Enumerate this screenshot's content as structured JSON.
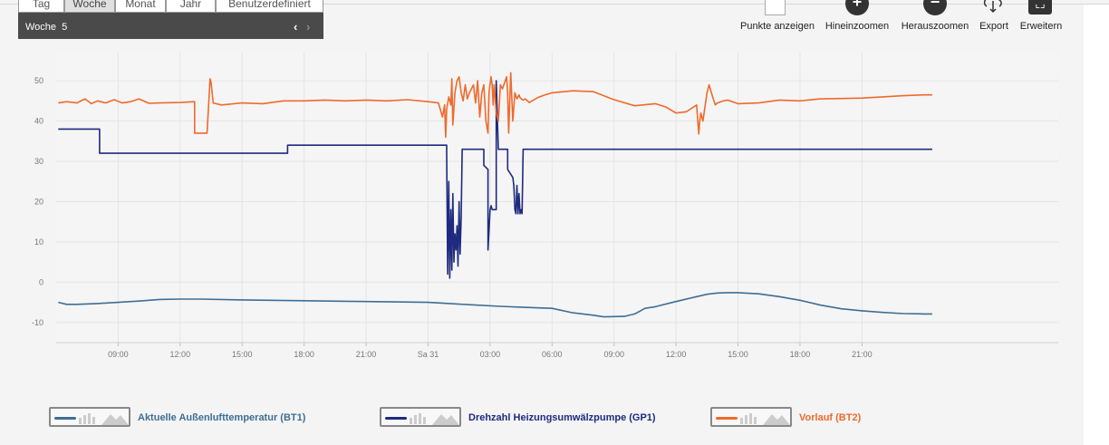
{
  "period_tabs": [
    "Tag",
    "Woche",
    "Monat",
    "Jahr",
    "Benutzerdefiniert"
  ],
  "active_tab": "Woche",
  "week": {
    "label": "Woche",
    "number": "5"
  },
  "toolbar": {
    "show_points": "Punkte anzeigen",
    "zoom_in": "Hineinzoomen",
    "zoom_out": "Herauszoomen",
    "export": "Export",
    "expand": "Erweitern"
  },
  "colors": {
    "outdoor": "#3e6e94",
    "pump": "#1e2b7e",
    "flow": "#ef6a2c",
    "grid": "#e4e4e4",
    "axis_text": "#777777"
  },
  "chart_data": {
    "type": "line",
    "title": "",
    "xlabel": "",
    "ylabel": "",
    "x_unit": "hours",
    "xlim": [
      6,
      54.5
    ],
    "ylim": [
      -15,
      57
    ],
    "y_ticks": [
      -10,
      0,
      10,
      20,
      30,
      40,
      50
    ],
    "x_ticks": [
      {
        "hour": 9,
        "label": "09:00"
      },
      {
        "hour": 12,
        "label": "12:00"
      },
      {
        "hour": 15,
        "label": "15:00"
      },
      {
        "hour": 18,
        "label": "18:00"
      },
      {
        "hour": 21,
        "label": "21:00"
      },
      {
        "hour": 24,
        "label": "Sa 31"
      },
      {
        "hour": 27,
        "label": "03:00"
      },
      {
        "hour": 30,
        "label": "06:00"
      },
      {
        "hour": 33,
        "label": "09:00"
      },
      {
        "hour": 36,
        "label": "12:00"
      },
      {
        "hour": 39,
        "label": "15:00"
      },
      {
        "hour": 42,
        "label": "18:00"
      },
      {
        "hour": 45,
        "label": "21:00"
      }
    ],
    "grid": true,
    "legend_position": "bottom",
    "series": [
      {
        "name": "Aktuelle Außenlufttemperatur (BT1)",
        "key": "outdoor",
        "x": [
          6.1,
          6.5,
          7,
          8,
          9,
          10,
          11,
          12,
          13,
          15,
          18,
          21,
          24,
          26,
          27.5,
          28.5,
          29.5,
          30,
          31,
          32,
          32.5,
          33.5,
          34,
          34.5,
          35,
          36,
          37,
          37.5,
          38,
          38.5,
          39,
          40,
          41,
          42,
          43,
          44,
          45,
          46,
          47,
          48,
          48.4
        ],
        "y": [
          -5,
          -5.5,
          -5.5,
          -5.3,
          -5,
          -4.7,
          -4.3,
          -4.2,
          -4.2,
          -4.4,
          -4.6,
          -4.8,
          -5,
          -5.6,
          -6,
          -6.2,
          -6.4,
          -6.5,
          -7.6,
          -8.2,
          -8.6,
          -8.5,
          -7.9,
          -6.5,
          -6.1,
          -4.8,
          -3.6,
          -3,
          -2.7,
          -2.6,
          -2.6,
          -2.9,
          -3.6,
          -4.5,
          -5.7,
          -6.6,
          -7.1,
          -7.5,
          -7.8,
          -7.9,
          -7.9
        ]
      },
      {
        "name": "Drehzahl Heizungsumwälzpumpe (GP1)",
        "key": "pump",
        "x": [
          6.1,
          8.1,
          8.1,
          17.2,
          17.2,
          24.9,
          24.9,
          24.95,
          25.0,
          25.05,
          25.1,
          25.15,
          25.2,
          25.25,
          25.3,
          25.35,
          25.4,
          25.45,
          25.5,
          25.55,
          25.6,
          25.65,
          25.65,
          26.7,
          26.7,
          26.9,
          26.9,
          27,
          27.05,
          27.1,
          27.15,
          27.3,
          27.3,
          27.4,
          27.5,
          27.6,
          27.7,
          27.8,
          27.85,
          27.85,
          28.1,
          28.15,
          28.2,
          28.25,
          28.3,
          28.35,
          28.4,
          28.45,
          28.5,
          28.55,
          28.6,
          28.6,
          48.4
        ],
        "y": [
          38,
          38,
          32,
          32,
          34,
          34,
          32,
          2,
          25,
          1,
          18,
          3,
          22,
          5,
          12,
          8,
          14,
          4,
          20,
          7,
          16,
          33,
          33,
          33,
          29,
          28,
          8,
          18,
          19,
          18,
          18,
          18,
          50,
          33,
          33,
          33,
          33,
          33,
          33,
          28,
          26,
          24,
          18,
          17,
          24,
          17,
          22,
          17,
          18,
          17,
          33,
          33,
          33
        ]
      },
      {
        "name": "Vorlauf (BT2)",
        "key": "flow",
        "x": [
          6.1,
          6.5,
          7,
          7.4,
          7.7,
          8,
          8.4,
          8.8,
          9.2,
          9.6,
          10,
          10.5,
          11,
          12,
          12.7,
          12.7,
          13.3,
          13.45,
          13.5,
          13.6,
          14,
          15,
          16,
          17,
          17.2,
          18,
          19,
          20,
          21,
          22,
          23,
          24,
          24.5,
          24.7,
          24.8,
          24.85,
          24.9,
          25,
          25.1,
          25.15,
          25.2,
          25.3,
          25.4,
          25.5,
          25.6,
          25.7,
          25.8,
          25.9,
          26,
          26.2,
          26.3,
          26.4,
          26.5,
          26.6,
          26.7,
          26.8,
          26.9,
          26.95,
          27.05,
          27.1,
          27.15,
          27.2,
          27.3,
          27.4,
          27.5,
          27.6,
          27.8,
          27.85,
          27.9,
          28,
          28.1,
          28.2,
          28.3,
          28.4,
          28.45,
          28.5,
          28.55,
          28.6,
          28.7,
          28.9,
          29.1,
          29.3,
          29.6,
          30,
          31,
          32,
          33,
          34,
          35,
          35.5,
          36,
          36.5,
          37,
          37.1,
          37.15,
          37.2,
          37.3,
          37.5,
          37.6,
          37.8,
          37.9,
          38,
          38.3,
          38.5,
          39,
          40,
          41,
          42,
          43,
          44,
          45,
          46,
          47,
          48,
          48.4
        ],
        "y": [
          44.5,
          44.8,
          44.5,
          45.5,
          44.3,
          45,
          44.5,
          45.3,
          44.5,
          44.8,
          45.5,
          44.4,
          44.5,
          44.6,
          44.8,
          37,
          37,
          50.5,
          49.5,
          44.5,
          44,
          44.5,
          44.3,
          45,
          45,
          45,
          45.2,
          45,
          45.2,
          45,
          45.3,
          44.8,
          44.5,
          41,
          44,
          36,
          43,
          46,
          44,
          50.5,
          39,
          47,
          50,
          51,
          47,
          45,
          49,
          45.5,
          47,
          49,
          44.5,
          50,
          41,
          47,
          49,
          40,
          37,
          47,
          51,
          49,
          44,
          49,
          42,
          40,
          49,
          48,
          51,
          47,
          37,
          52,
          40,
          47,
          45.5,
          46.5,
          45.8,
          45.6,
          45.3,
          45.2,
          45.5,
          44.6,
          45.2,
          45.8,
          46.4,
          47,
          47.5,
          47.3,
          45.3,
          43.8,
          44.3,
          43.5,
          42,
          42.3,
          44,
          36.8,
          40,
          42,
          40,
          47,
          49,
          45.5,
          44,
          44.5,
          45,
          45.2,
          44.3,
          44.5,
          45.2,
          45,
          45.5,
          45.6,
          45.7,
          46,
          46.3,
          46.5,
          46.5
        ]
      }
    ]
  }
}
